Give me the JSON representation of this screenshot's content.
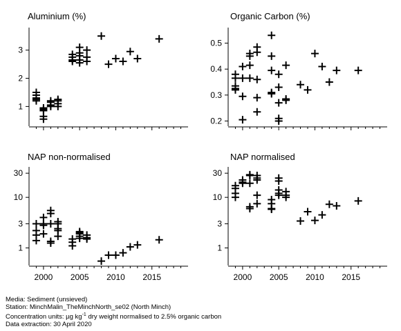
{
  "footer": {
    "media": "Media: Sediment (unsieved)",
    "station": "Station: MinchMalin_TheMinchNorth_se02 (North Minch)",
    "units_prefix": "Concentration units:  µg kg",
    "units_exp": "-1",
    "units_suffix": " dry weight normalised to 2.5% organic carbon",
    "extraction": "Data extraction: 30 April 2020"
  },
  "chart_data": [
    {
      "type": "scatter",
      "title": "Aluminium (%)",
      "scale": "linear",
      "xlim": [
        1998,
        2020
      ],
      "ylim": [
        0.3,
        3.8
      ],
      "xticks": [
        2000,
        2005,
        2010,
        2015
      ],
      "xtick_labels": [
        "",
        "",
        "",
        ""
      ],
      "yticks": [
        1,
        2,
        3
      ],
      "ytick_labels": [
        "1",
        "2",
        "3"
      ],
      "marker": "plus",
      "points": [
        [
          1999,
          1.5
        ],
        [
          1999,
          1.4
        ],
        [
          1999,
          1.3
        ],
        [
          1999,
          1.25
        ],
        [
          1999,
          1.2
        ],
        [
          2000,
          0.95
        ],
        [
          2000,
          0.9
        ],
        [
          2000,
          0.85
        ],
        [
          2000,
          0.65
        ],
        [
          2000,
          0.55
        ],
        [
          2001,
          1.2
        ],
        [
          2001,
          1.15
        ],
        [
          2001,
          1.05
        ],
        [
          2001,
          1.0
        ],
        [
          2002,
          1.25
        ],
        [
          2002,
          1.2
        ],
        [
          2002,
          1.1
        ],
        [
          2002,
          1.0
        ],
        [
          2004,
          2.85
        ],
        [
          2004,
          2.75
        ],
        [
          2004,
          2.65
        ],
        [
          2004,
          2.6
        ],
        [
          2005,
          3.1
        ],
        [
          2005,
          2.9
        ],
        [
          2005,
          2.8
        ],
        [
          2005,
          2.65
        ],
        [
          2005,
          2.55
        ],
        [
          2006,
          3.0
        ],
        [
          2006,
          2.75
        ],
        [
          2006,
          2.6
        ],
        [
          2008,
          3.5
        ],
        [
          2009,
          2.5
        ],
        [
          2010,
          2.7
        ],
        [
          2011,
          2.6
        ],
        [
          2012,
          2.95
        ],
        [
          2013,
          2.7
        ],
        [
          2016,
          3.4
        ]
      ]
    },
    {
      "type": "scatter",
      "title": "Organic Carbon (%)",
      "scale": "linear",
      "xlim": [
        1998,
        2020
      ],
      "ylim": [
        0.18,
        0.56
      ],
      "xticks": [
        2000,
        2005,
        2010,
        2015
      ],
      "xtick_labels": [
        "",
        "",
        "",
        ""
      ],
      "yticks": [
        0.2,
        0.3,
        0.4,
        0.5
      ],
      "ytick_labels": [
        "0.2",
        "0.3",
        "0.4",
        "0.5"
      ],
      "marker": "plus",
      "points": [
        [
          1999,
          0.38
        ],
        [
          1999,
          0.365
        ],
        [
          1999,
          0.335
        ],
        [
          1999,
          0.325
        ],
        [
          1999,
          0.32
        ],
        [
          2000,
          0.41
        ],
        [
          2000,
          0.365
        ],
        [
          2000,
          0.295
        ],
        [
          2000,
          0.205
        ],
        [
          2001,
          0.46
        ],
        [
          2001,
          0.45
        ],
        [
          2001,
          0.415
        ],
        [
          2001,
          0.365
        ],
        [
          2002,
          0.485
        ],
        [
          2002,
          0.465
        ],
        [
          2002,
          0.36
        ],
        [
          2002,
          0.29
        ],
        [
          2002,
          0.235
        ],
        [
          2004,
          0.53
        ],
        [
          2004,
          0.45
        ],
        [
          2004,
          0.395
        ],
        [
          2004,
          0.31
        ],
        [
          2004,
          0.305
        ],
        [
          2005,
          0.38
        ],
        [
          2005,
          0.33
        ],
        [
          2005,
          0.27
        ],
        [
          2005,
          0.21
        ],
        [
          2005,
          0.2
        ],
        [
          2006,
          0.415
        ],
        [
          2006,
          0.285
        ],
        [
          2006,
          0.28
        ],
        [
          2008,
          0.34
        ],
        [
          2009,
          0.32
        ],
        [
          2010,
          0.46
        ],
        [
          2011,
          0.41
        ],
        [
          2012,
          0.35
        ],
        [
          2013,
          0.395
        ],
        [
          2016,
          0.395
        ]
      ]
    },
    {
      "type": "scatter",
      "title": "NAP non-normalised",
      "scale": "log",
      "xlim": [
        1998,
        2020
      ],
      "ylim": [
        0.45,
        40
      ],
      "xticks": [
        2000,
        2005,
        2010,
        2015
      ],
      "xtick_labels": [
        "2000",
        "2005",
        "2010",
        "2015"
      ],
      "yticks": [
        1,
        3,
        10,
        30
      ],
      "ytick_labels": [
        "1",
        "3",
        "10",
        "30"
      ],
      "marker": "plus",
      "points": [
        [
          1999,
          3.0
        ],
        [
          1999,
          2.2
        ],
        [
          1999,
          1.8
        ],
        [
          1999,
          1.4
        ],
        [
          2000,
          4.0
        ],
        [
          2000,
          3.0
        ],
        [
          2000,
          2.8
        ],
        [
          2000,
          1.9
        ],
        [
          2001,
          5.5
        ],
        [
          2001,
          4.8
        ],
        [
          2001,
          3.0
        ],
        [
          2001,
          1.35
        ],
        [
          2001,
          1.25
        ],
        [
          2002,
          3.3
        ],
        [
          2002,
          3.0
        ],
        [
          2002,
          2.4
        ],
        [
          2002,
          2.2
        ],
        [
          2002,
          1.7
        ],
        [
          2004,
          1.5
        ],
        [
          2004,
          1.3
        ],
        [
          2004,
          1.1
        ],
        [
          2005,
          2.1
        ],
        [
          2005,
          2.0
        ],
        [
          2005,
          1.9
        ],
        [
          2005,
          1.7
        ],
        [
          2005,
          1.55
        ],
        [
          2006,
          1.8
        ],
        [
          2006,
          1.6
        ],
        [
          2006,
          1.5
        ],
        [
          2008,
          0.55
        ],
        [
          2009,
          0.72
        ],
        [
          2010,
          0.72
        ],
        [
          2011,
          0.8
        ],
        [
          2012,
          1.05
        ],
        [
          2013,
          1.15
        ],
        [
          2016,
          1.45
        ]
      ]
    },
    {
      "type": "scatter",
      "title": "NAP normalised",
      "scale": "log",
      "xlim": [
        1998,
        2020
      ],
      "ylim": [
        0.45,
        40
      ],
      "xticks": [
        2000,
        2005,
        2010,
        2015
      ],
      "xtick_labels": [
        "2000",
        "2005",
        "2010",
        "2015"
      ],
      "yticks": [
        1,
        3,
        10,
        30
      ],
      "ytick_labels": [
        "1",
        "3",
        "10",
        "30"
      ],
      "marker": "plus",
      "points": [
        [
          1999,
          17
        ],
        [
          1999,
          15
        ],
        [
          1999,
          12
        ],
        [
          1999,
          10
        ],
        [
          2000,
          22
        ],
        [
          2000,
          20
        ],
        [
          2000,
          19
        ],
        [
          2001,
          28
        ],
        [
          2001,
          27
        ],
        [
          2001,
          19
        ],
        [
          2001,
          6.5
        ],
        [
          2001,
          6.0
        ],
        [
          2002,
          27
        ],
        [
          2002,
          24
        ],
        [
          2002,
          22
        ],
        [
          2002,
          11
        ],
        [
          2002,
          7.5
        ],
        [
          2004,
          9
        ],
        [
          2004,
          7.5
        ],
        [
          2004,
          6.0
        ],
        [
          2004,
          5.8
        ],
        [
          2005,
          24
        ],
        [
          2005,
          21
        ],
        [
          2005,
          14
        ],
        [
          2005,
          12
        ],
        [
          2005,
          11
        ],
        [
          2006,
          13
        ],
        [
          2006,
          11
        ],
        [
          2006,
          10
        ],
        [
          2008,
          3.4
        ],
        [
          2009,
          5.2
        ],
        [
          2010,
          3.5
        ],
        [
          2011,
          4.5
        ],
        [
          2012,
          7.3
        ],
        [
          2013,
          6.8
        ],
        [
          2016,
          8.5
        ]
      ]
    }
  ]
}
